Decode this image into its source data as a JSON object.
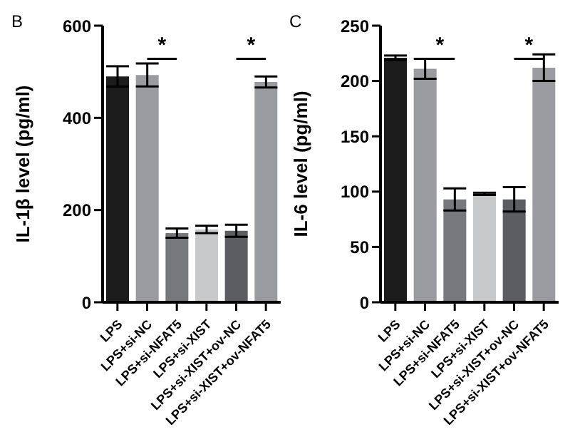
{
  "chart_data": [
    {
      "type": "bar",
      "title": "B",
      "ylabel": "IL-1β level (pg/ml)",
      "categories": [
        "LPS",
        "LPS+si-NC",
        "LPS+si-NFAT5",
        "LPS+si-XIST",
        "LPS+si-XIST+ov-NC",
        "LPS+si-XIST+ov-NFAT5"
      ],
      "values": [
        490,
        493,
        150,
        158,
        155,
        478
      ],
      "errors": [
        22,
        25,
        10,
        8,
        13,
        12
      ],
      "colors": [
        "#1c1c1c",
        "#9a9b9f",
        "#77787c",
        "#c8c9cb",
        "#5c5d61",
        "#9a9ba0"
      ],
      "ylim": [
        0,
        600
      ],
      "yticks": [
        0,
        200,
        400,
        600
      ],
      "grid": false,
      "legend": false,
      "annotations": [
        "*",
        "*"
      ]
    },
    {
      "type": "bar",
      "title": "C",
      "ylabel": "IL-6 level (pg/ml)",
      "categories": [
        "LPS",
        "LPS+si-NC",
        "LPS+si-NFAT5",
        "LPS+si-XIST",
        "LPS+si-XIST+ov-NC",
        "LPS+si-XIST+ov-NFAT5"
      ],
      "values": [
        221,
        211,
        93,
        98,
        93,
        212
      ],
      "errors": [
        2,
        9,
        10,
        1,
        11,
        12
      ],
      "colors": [
        "#1c1c1c",
        "#9a9b9f",
        "#77787c",
        "#c8c9cb",
        "#5c5d61",
        "#9a9ba0"
      ],
      "ylim": [
        0,
        250
      ],
      "yticks": [
        0,
        50,
        100,
        150,
        200,
        250
      ],
      "grid": false,
      "legend": false,
      "annotations": [
        "*",
        "*"
      ]
    }
  ]
}
